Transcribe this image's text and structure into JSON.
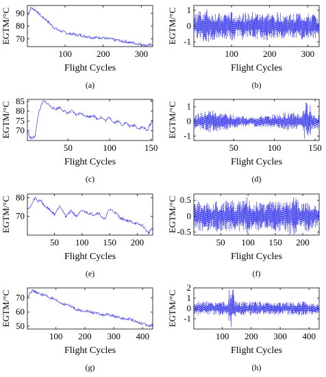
{
  "figure": {
    "line_color": "#3b3bf0",
    "axis_color": "#000000",
    "background": "#ffffff"
  },
  "chart_data": [
    {
      "id": "a",
      "caption": "(a)",
      "type": "line",
      "style": "trend",
      "xlabel": "Flight Cycles",
      "ylabel": "EGTM/°C",
      "xlim": [
        1,
        330
      ],
      "ylim": [
        64,
        96
      ],
      "xticks": [
        100,
        200,
        300
      ],
      "yticks": [
        70,
        80,
        90
      ],
      "series": [
        {
          "x": [
            1,
            10,
            20,
            30,
            40,
            50,
            60,
            70,
            80,
            90,
            100,
            110,
            120,
            130,
            140,
            150,
            160,
            170,
            180,
            190,
            200,
            210,
            220,
            230,
            240,
            250,
            260,
            270,
            280,
            290,
            300,
            310,
            320,
            330
          ],
          "y": [
            88,
            94,
            93,
            90,
            87,
            85,
            82,
            79,
            77,
            76,
            75,
            74,
            74,
            73,
            73,
            72,
            72,
            71,
            71,
            71,
            71,
            70,
            70,
            69,
            69,
            68,
            68,
            67,
            67,
            66,
            66,
            65,
            65,
            66
          ]
        }
      ]
    },
    {
      "id": "b",
      "caption": "(b)",
      "type": "line",
      "style": "residual",
      "xlabel": "Flight Cycles",
      "ylabel": "EGTM/°C",
      "xlim": [
        1,
        330
      ],
      "ylim": [
        -1.3,
        1.3
      ],
      "xticks": [
        100,
        200,
        300
      ],
      "yticks": [
        -1,
        0,
        1
      ],
      "series": [
        {
          "x": [
            1,
            10,
            20,
            30,
            40,
            50,
            60,
            70,
            80,
            90,
            100,
            110,
            120,
            130,
            140,
            150,
            160,
            170,
            180,
            190,
            200,
            210,
            220,
            230,
            240,
            250,
            260,
            270,
            280,
            290,
            300,
            310,
            320,
            330
          ],
          "y": [
            0.0,
            0.8,
            -1.1,
            1.1,
            -0.9,
            0.9,
            -0.7,
            0.8,
            -0.8,
            0.9,
            -0.9,
            0.8,
            -0.7,
            0.9,
            -0.8,
            0.7,
            -0.9,
            0.8,
            -0.7,
            0.9,
            -0.8,
            0.7,
            -0.8,
            0.9,
            -0.7,
            0.8,
            -0.8,
            0.7,
            -0.9,
            0.8,
            -0.7,
            0.8,
            -0.6,
            0.2
          ]
        }
      ]
    },
    {
      "id": "c",
      "caption": "(c)",
      "type": "line",
      "style": "trend",
      "xlabel": "Flight Cycles",
      "ylabel": "EGTM/°C",
      "xlim": [
        1,
        152
      ],
      "ylim": [
        65,
        86
      ],
      "xticks": [
        50,
        100,
        150
      ],
      "yticks": [
        70,
        75,
        80,
        85
      ],
      "series": [
        {
          "x": [
            1,
            5,
            10,
            15,
            20,
            25,
            30,
            35,
            40,
            45,
            50,
            55,
            60,
            65,
            70,
            75,
            80,
            85,
            90,
            95,
            100,
            105,
            110,
            115,
            120,
            125,
            130,
            135,
            140,
            145,
            150,
            152
          ],
          "y": [
            70,
            66,
            67,
            80,
            85,
            84,
            82,
            81,
            82,
            80,
            79,
            80,
            78,
            79,
            78,
            77,
            78,
            76,
            77,
            75,
            77,
            74,
            75,
            73,
            74,
            72,
            73,
            71,
            72,
            70,
            74,
            75
          ]
        }
      ]
    },
    {
      "id": "d",
      "caption": "(d)",
      "type": "line",
      "style": "residual",
      "xlabel": "Flight Cycles",
      "ylabel": "EGTM/°C",
      "xlim": [
        1,
        155
      ],
      "ylim": [
        -1.3,
        1.5
      ],
      "xticks": [
        50,
        100,
        150
      ],
      "yticks": [
        -1,
        0,
        1
      ],
      "series": [
        {
          "x": [
            1,
            5,
            10,
            15,
            20,
            25,
            30,
            35,
            40,
            45,
            50,
            55,
            60,
            65,
            70,
            75,
            80,
            85,
            90,
            95,
            100,
            105,
            110,
            115,
            120,
            125,
            130,
            135,
            138,
            140,
            145,
            150,
            155
          ],
          "y": [
            0.1,
            0.5,
            -0.6,
            0.7,
            -0.8,
            0.7,
            -0.6,
            0.6,
            -0.6,
            0.5,
            -0.5,
            0.4,
            -0.4,
            0.3,
            -0.3,
            0.3,
            -0.4,
            0.4,
            -0.3,
            0.4,
            -0.5,
            0.5,
            -0.5,
            0.6,
            -0.6,
            0.6,
            -0.5,
            0.4,
            -1.2,
            1.3,
            -0.6,
            0.5,
            -0.2
          ]
        }
      ]
    },
    {
      "id": "e",
      "caption": "(e)",
      "type": "line",
      "style": "trend",
      "xlabel": "Flight Cycles",
      "ylabel": "EGTM/°C",
      "xlim": [
        1,
        228
      ],
      "ylim": [
        60,
        82
      ],
      "xticks": [
        50,
        100,
        150,
        200
      ],
      "yticks": [
        70,
        80
      ],
      "series": [
        {
          "x": [
            1,
            5,
            10,
            15,
            20,
            25,
            30,
            40,
            50,
            60,
            70,
            80,
            90,
            100,
            110,
            120,
            130,
            140,
            150,
            160,
            170,
            180,
            190,
            200,
            210,
            220,
            225,
            228
          ],
          "y": [
            75,
            74,
            77,
            80,
            78,
            79,
            76,
            74,
            71,
            76,
            70,
            73,
            70,
            73,
            72,
            71,
            72,
            68,
            74,
            72,
            69,
            68,
            67,
            66,
            65,
            61,
            63,
            64
          ]
        }
      ]
    },
    {
      "id": "f",
      "caption": "(f)",
      "type": "line",
      "style": "residual",
      "xlabel": "Flight Cycles",
      "ylabel": "EGTM/°C",
      "xlim": [
        1,
        230
      ],
      "ylim": [
        -0.6,
        0.7
      ],
      "xticks": [
        50,
        100,
        150,
        200
      ],
      "yticks": [
        -0.5,
        0,
        0.5
      ],
      "series": [
        {
          "x": [
            1,
            8,
            16,
            24,
            32,
            40,
            48,
            56,
            64,
            72,
            80,
            88,
            96,
            100,
            104,
            112,
            120,
            128,
            136,
            144,
            152,
            160,
            168,
            176,
            184,
            192,
            200,
            208,
            216,
            224,
            230
          ],
          "y": [
            0.0,
            0.4,
            -0.5,
            0.5,
            -0.4,
            0.4,
            -0.5,
            0.5,
            -0.4,
            0.5,
            -0.5,
            0.4,
            -0.5,
            0.6,
            -0.4,
            0.5,
            -0.5,
            0.4,
            -0.4,
            0.5,
            -0.5,
            0.4,
            -0.5,
            0.5,
            -0.6,
            0.4,
            -0.4,
            0.5,
            -0.4,
            0.3,
            0.0
          ]
        }
      ]
    },
    {
      "id": "g",
      "caption": "(g)",
      "type": "line",
      "style": "trend",
      "xlabel": "Flight Cycles",
      "ylabel": "EGTM/°C",
      "xlim": [
        1,
        435
      ],
      "ylim": [
        48,
        77
      ],
      "xticks": [
        100,
        200,
        300,
        400
      ],
      "yticks": [
        50,
        60,
        70
      ],
      "series": [
        {
          "x": [
            1,
            10,
            20,
            40,
            60,
            80,
            100,
            120,
            140,
            160,
            180,
            200,
            220,
            240,
            260,
            280,
            300,
            320,
            340,
            360,
            380,
            400,
            420,
            435
          ],
          "y": [
            70,
            74,
            75,
            73,
            72,
            70,
            68,
            66,
            65,
            63,
            61,
            61,
            60,
            59,
            58,
            58,
            57,
            56,
            55,
            55,
            53,
            52,
            50,
            51
          ]
        }
      ]
    },
    {
      "id": "h",
      "caption": "(h)",
      "type": "line",
      "style": "residual",
      "xlabel": "Flight Cycles",
      "ylabel": "EGTM/°C",
      "xlim": [
        1,
        435
      ],
      "ylim": [
        -2,
        2
      ],
      "xticks": [
        100,
        200,
        300,
        400
      ],
      "yticks": [
        -1,
        0,
        1,
        2
      ],
      "series": [
        {
          "x": [
            1,
            15,
            30,
            45,
            60,
            75,
            90,
            105,
            120,
            130,
            135,
            140,
            150,
            165,
            180,
            195,
            210,
            225,
            240,
            255,
            270,
            285,
            300,
            315,
            330,
            345,
            360,
            375,
            390,
            405,
            420,
            435
          ],
          "y": [
            0.0,
            0.6,
            -0.7,
            0.7,
            -0.6,
            0.6,
            -0.7,
            0.6,
            -0.6,
            -1.9,
            1.9,
            -0.8,
            0.7,
            -0.7,
            0.6,
            -0.6,
            0.7,
            -0.7,
            0.6,
            -0.6,
            0.7,
            -0.7,
            0.6,
            -0.6,
            0.7,
            -0.6,
            0.6,
            -0.7,
            0.6,
            -0.6,
            0.5,
            -0.4
          ]
        }
      ]
    }
  ]
}
